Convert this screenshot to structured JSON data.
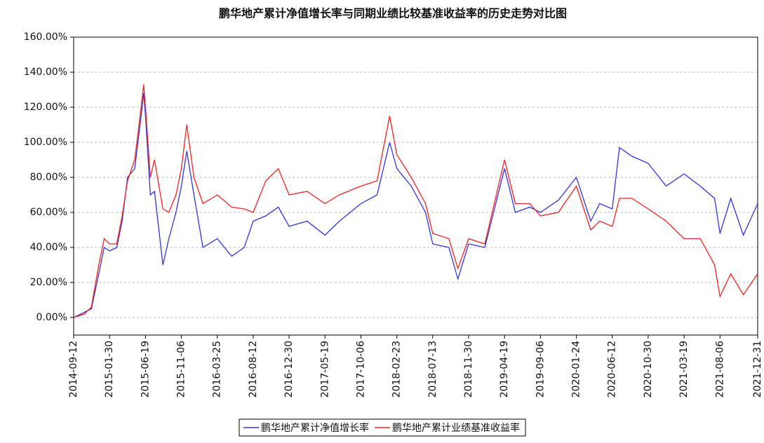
{
  "chart_data": {
    "type": "line",
    "title": "鹏华地产累计净值增长率与同期业绩比较基准收益率的历史走势对比图",
    "x": [
      "2014-09-12",
      "2014-10-24",
      "2014-11-20",
      "2014-12-19",
      "2015-01-09",
      "2015-01-30",
      "2015-02-27",
      "2015-03-20",
      "2015-04-10",
      "2015-05-08",
      "2015-05-29",
      "2015-06-12",
      "2015-06-19",
      "2015-07-08",
      "2015-07-24",
      "2015-08-26",
      "2015-09-18",
      "2015-10-16",
      "2015-11-06",
      "2015-11-27",
      "2015-12-25",
      "2016-01-29",
      "2016-03-25",
      "2016-05-20",
      "2016-07-08",
      "2016-08-12",
      "2016-09-30",
      "2016-11-18",
      "2016-12-30",
      "2017-03-10",
      "2017-05-19",
      "2017-07-14",
      "2017-10-06",
      "2017-12-08",
      "2018-01-26",
      "2018-02-23",
      "2018-04-20",
      "2018-06-15",
      "2018-07-13",
      "2018-09-14",
      "2018-10-19",
      "2018-11-30",
      "2019-02-01",
      "2019-04-19",
      "2019-05-31",
      "2019-07-26",
      "2019-09-06",
      "2019-11-15",
      "2020-01-24",
      "2020-03-20",
      "2020-04-24",
      "2020-06-12",
      "2020-07-10",
      "2020-08-28",
      "2020-10-30",
      "2021-01-08",
      "2021-03-19",
      "2021-05-21",
      "2021-07-16",
      "2021-08-06",
      "2021-09-17",
      "2021-11-05",
      "2021-12-31"
    ],
    "series": [
      {
        "name": "鹏华地产累计净值增长率",
        "color": "#3333dd",
        "values": [
          0,
          3,
          5,
          25,
          40,
          38,
          40,
          55,
          80,
          85,
          110,
          128,
          115,
          70,
          72,
          30,
          45,
          60,
          75,
          95,
          70,
          40,
          45,
          35,
          40,
          55,
          58,
          63,
          52,
          55,
          47,
          55,
          65,
          70,
          100,
          85,
          75,
          60,
          42,
          40,
          22,
          42,
          40,
          85,
          60,
          63,
          60,
          67,
          80,
          55,
          65,
          62,
          97,
          92,
          88,
          75,
          82,
          75,
          68,
          48,
          68,
          47,
          65
        ]
      },
      {
        "name": "鹏华地产累计业绩基准收益率",
        "color": "#ee2222",
        "values": [
          0,
          2,
          6,
          30,
          45,
          42,
          42,
          58,
          78,
          90,
          115,
          133,
          120,
          80,
          90,
          62,
          60,
          70,
          85,
          110,
          80,
          65,
          70,
          63,
          62,
          60,
          78,
          85,
          70,
          72,
          65,
          70,
          75,
          78,
          115,
          93,
          80,
          65,
          48,
          45,
          28,
          45,
          42,
          90,
          65,
          65,
          58,
          60,
          75,
          50,
          55,
          52,
          68,
          68,
          62,
          55,
          45,
          45,
          30,
          12,
          25,
          13,
          25
        ]
      }
    ],
    "ylim": [
      -10,
      160
    ],
    "yticks": [
      {
        "value": 0,
        "label": "0.00%"
      },
      {
        "value": 20,
        "label": "20.00%"
      },
      {
        "value": 40,
        "label": "40.00%"
      },
      {
        "value": 60,
        "label": "60.00%"
      },
      {
        "value": 80,
        "label": "80.00%"
      },
      {
        "value": 100,
        "label": "100.00%"
      },
      {
        "value": 120,
        "label": "120.00%"
      },
      {
        "value": 140,
        "label": "140.00%"
      },
      {
        "value": 160,
        "label": "160.00%"
      }
    ],
    "xlim": [
      "2014-09-12",
      "2021-12-31"
    ],
    "xticks": [
      "2014-09-12",
      "2015-01-30",
      "2015-06-19",
      "2015-11-06",
      "2016-03-25",
      "2016-08-12",
      "2016-12-30",
      "2017-05-19",
      "2017-10-06",
      "2018-02-23",
      "2018-07-13",
      "2018-11-30",
      "2019-04-19",
      "2019-09-06",
      "2020-01-24",
      "2020-06-12",
      "2020-10-30",
      "2021-03-19",
      "2021-08-06",
      "2021-12-31"
    ],
    "grid": true,
    "legend": "bottom"
  }
}
